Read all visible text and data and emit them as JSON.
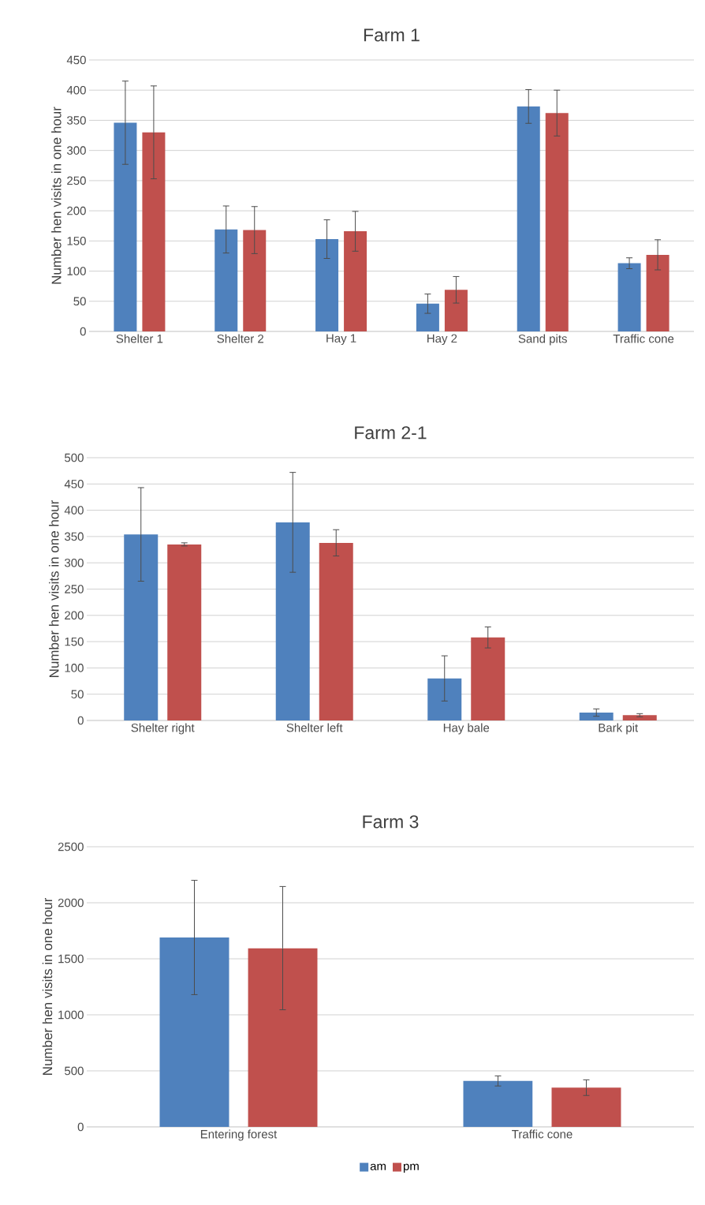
{
  "chart_data": [
    {
      "type": "bar",
      "title": "Farm 1",
      "ylabel": "Number hen visits in one hour",
      "categories": [
        "Shelter 1",
        "Shelter 2",
        "Hay 1",
        "Hay 2",
        "Sand pits",
        "Traffic cone"
      ],
      "series": [
        {
          "color": "#4f81bd",
          "values": [
            346,
            169,
            153,
            46,
            373,
            113
          ],
          "errors": [
            69,
            39,
            32,
            16,
            28,
            9
          ]
        },
        {
          "color": "#c0504d",
          "values": [
            330,
            168,
            166,
            69,
            362,
            127
          ],
          "errors": [
            77,
            39,
            33,
            22,
            38,
            25
          ]
        }
      ],
      "ylim": [
        0,
        450
      ],
      "yticks": [
        0,
        50,
        100,
        150,
        200,
        250,
        300,
        350,
        400,
        450
      ],
      "grid": "y"
    },
    {
      "type": "bar",
      "title": "Farm 2-1",
      "ylabel": "Number hen visits in one hour",
      "categories": [
        "Shelter right",
        "Shelter left",
        "Hay bale",
        "Bark pit"
      ],
      "series": [
        {
          "color": "#4f81bd",
          "values": [
            354,
            377,
            80,
            15
          ],
          "errors": [
            89,
            95,
            43,
            7
          ]
        },
        {
          "color": "#c0504d",
          "values": [
            335,
            338,
            158,
            10
          ],
          "errors": [
            3,
            25,
            20,
            3
          ]
        }
      ],
      "ylim": [
        0,
        500
      ],
      "yticks": [
        0,
        50,
        100,
        150,
        200,
        250,
        300,
        350,
        400,
        450,
        500
      ],
      "grid": "y"
    },
    {
      "type": "bar",
      "title": "Farm 3",
      "ylabel": "Number hen visits in one hour",
      "categories": [
        "Entering forest",
        "Traffic cone"
      ],
      "series": [
        {
          "name": "am",
          "color": "#4f81bd",
          "values": [
            1690,
            410
          ],
          "errors": [
            510,
            45
          ]
        },
        {
          "name": "pm",
          "color": "#c0504d",
          "values": [
            1595,
            350
          ],
          "errors": [
            550,
            70
          ]
        }
      ],
      "ylim": [
        0,
        2500
      ],
      "yticks": [
        0,
        500,
        1000,
        1500,
        2000,
        2500
      ],
      "grid": "y",
      "legend": "bottom"
    }
  ]
}
